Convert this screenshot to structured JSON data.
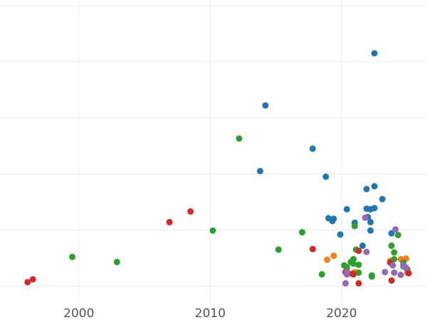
{
  "chart_data": {
    "type": "scatter",
    "title": "",
    "xlabel": "",
    "ylabel": "",
    "xlim": [
      1994,
      2026.5
    ],
    "ylim": [
      -0.3,
      5.1
    ],
    "grid": true,
    "x_ticks": [
      2000,
      2010,
      2020
    ],
    "x_tick_labels": [
      "2000",
      "2010",
      "2020"
    ],
    "y_gridlines": [
      0,
      1,
      2,
      3,
      4,
      5
    ],
    "colors": {
      "blue": "#1f77b4",
      "orange": "#ff7f0e",
      "green": "#2ca02c",
      "red": "#d62728",
      "purple": "#9467bd"
    },
    "series": [
      {
        "color": "#1f77b4",
        "points": [
          [
            2022.5,
            4.15
          ],
          [
            2014.2,
            3.22
          ],
          [
            2017.8,
            2.45
          ],
          [
            2013.8,
            2.05
          ],
          [
            2018.8,
            1.95
          ],
          [
            2022.5,
            1.78
          ],
          [
            2021.9,
            1.73
          ],
          [
            2023.1,
            1.55
          ],
          [
            2021.9,
            1.38
          ],
          [
            2022.2,
            1.37
          ],
          [
            2022.5,
            1.39
          ],
          [
            2020.4,
            1.37
          ],
          [
            2022.0,
            1.23
          ],
          [
            2019.0,
            1.21
          ],
          [
            2019.4,
            1.2
          ],
          [
            2019.3,
            1.16
          ],
          [
            2022.2,
            1.14
          ],
          [
            2021.0,
            1.13
          ],
          [
            2022.2,
            0.99
          ],
          [
            2023.8,
            0.94
          ],
          [
            2019.9,
            0.92
          ],
          [
            2021.6,
            0.72
          ]
        ]
      },
      {
        "color": "#ff7f0e",
        "points": [
          [
            2019.4,
            0.54
          ],
          [
            2018.9,
            0.47
          ],
          [
            2024.5,
            0.48
          ],
          [
            2024.9,
            0.49
          ],
          [
            2023.7,
            0.45
          ],
          [
            2020.4,
            0.3
          ],
          [
            2021.0,
            0.25
          ],
          [
            2025.0,
            0.24
          ]
        ]
      },
      {
        "color": "#2ca02c",
        "points": [
          [
            2012.2,
            2.63
          ],
          [
            2010.2,
            0.99
          ],
          [
            2017.0,
            0.96
          ],
          [
            2021.0,
            1.07
          ],
          [
            2024.3,
            0.91
          ],
          [
            2023.8,
            0.72
          ],
          [
            2024.0,
            0.6
          ],
          [
            2015.2,
            0.65
          ],
          [
            1999.5,
            0.52
          ],
          [
            2002.9,
            0.43
          ],
          [
            2021.1,
            0.65
          ],
          [
            2020.9,
            0.48
          ],
          [
            2020.7,
            0.43
          ],
          [
            2020.2,
            0.37
          ],
          [
            2020.4,
            0.34
          ],
          [
            2021.3,
            0.38
          ],
          [
            2020.9,
            0.4
          ],
          [
            2024.0,
            0.48
          ],
          [
            2024.7,
            0.42
          ],
          [
            2024.7,
            0.35
          ],
          [
            2018.5,
            0.21
          ],
          [
            2021.3,
            0.24
          ],
          [
            2022.3,
            0.19
          ],
          [
            2022.3,
            0.17
          ],
          [
            2025.0,
            0.3
          ]
        ]
      },
      {
        "color": "#d62728",
        "points": [
          [
            2008.5,
            1.33
          ],
          [
            2006.9,
            1.14
          ],
          [
            2017.8,
            0.66
          ],
          [
            2021.3,
            0.63
          ],
          [
            2023.7,
            0.42
          ],
          [
            2020.3,
            0.25
          ],
          [
            2020.8,
            0.22
          ],
          [
            2021.3,
            0.05
          ],
          [
            2023.8,
            0.1
          ],
          [
            2025.1,
            0.23
          ],
          [
            1996.1,
            0.07
          ],
          [
            1996.5,
            0.12
          ],
          [
            2020.9,
            0.21
          ]
        ]
      },
      {
        "color": "#9467bd",
        "points": [
          [
            2021.8,
            1.22
          ],
          [
            2024.1,
            1.01
          ],
          [
            2021.9,
            0.61
          ],
          [
            2023.9,
            0.37
          ],
          [
            2024.7,
            0.37
          ],
          [
            2020.4,
            0.25
          ],
          [
            2020.4,
            0.21
          ],
          [
            2020.3,
            0.05
          ],
          [
            2023.3,
            0.25
          ],
          [
            2024.0,
            0.24
          ],
          [
            2024.5,
            0.2
          ],
          [
            2024.9,
            0.33
          ]
        ]
      }
    ]
  }
}
